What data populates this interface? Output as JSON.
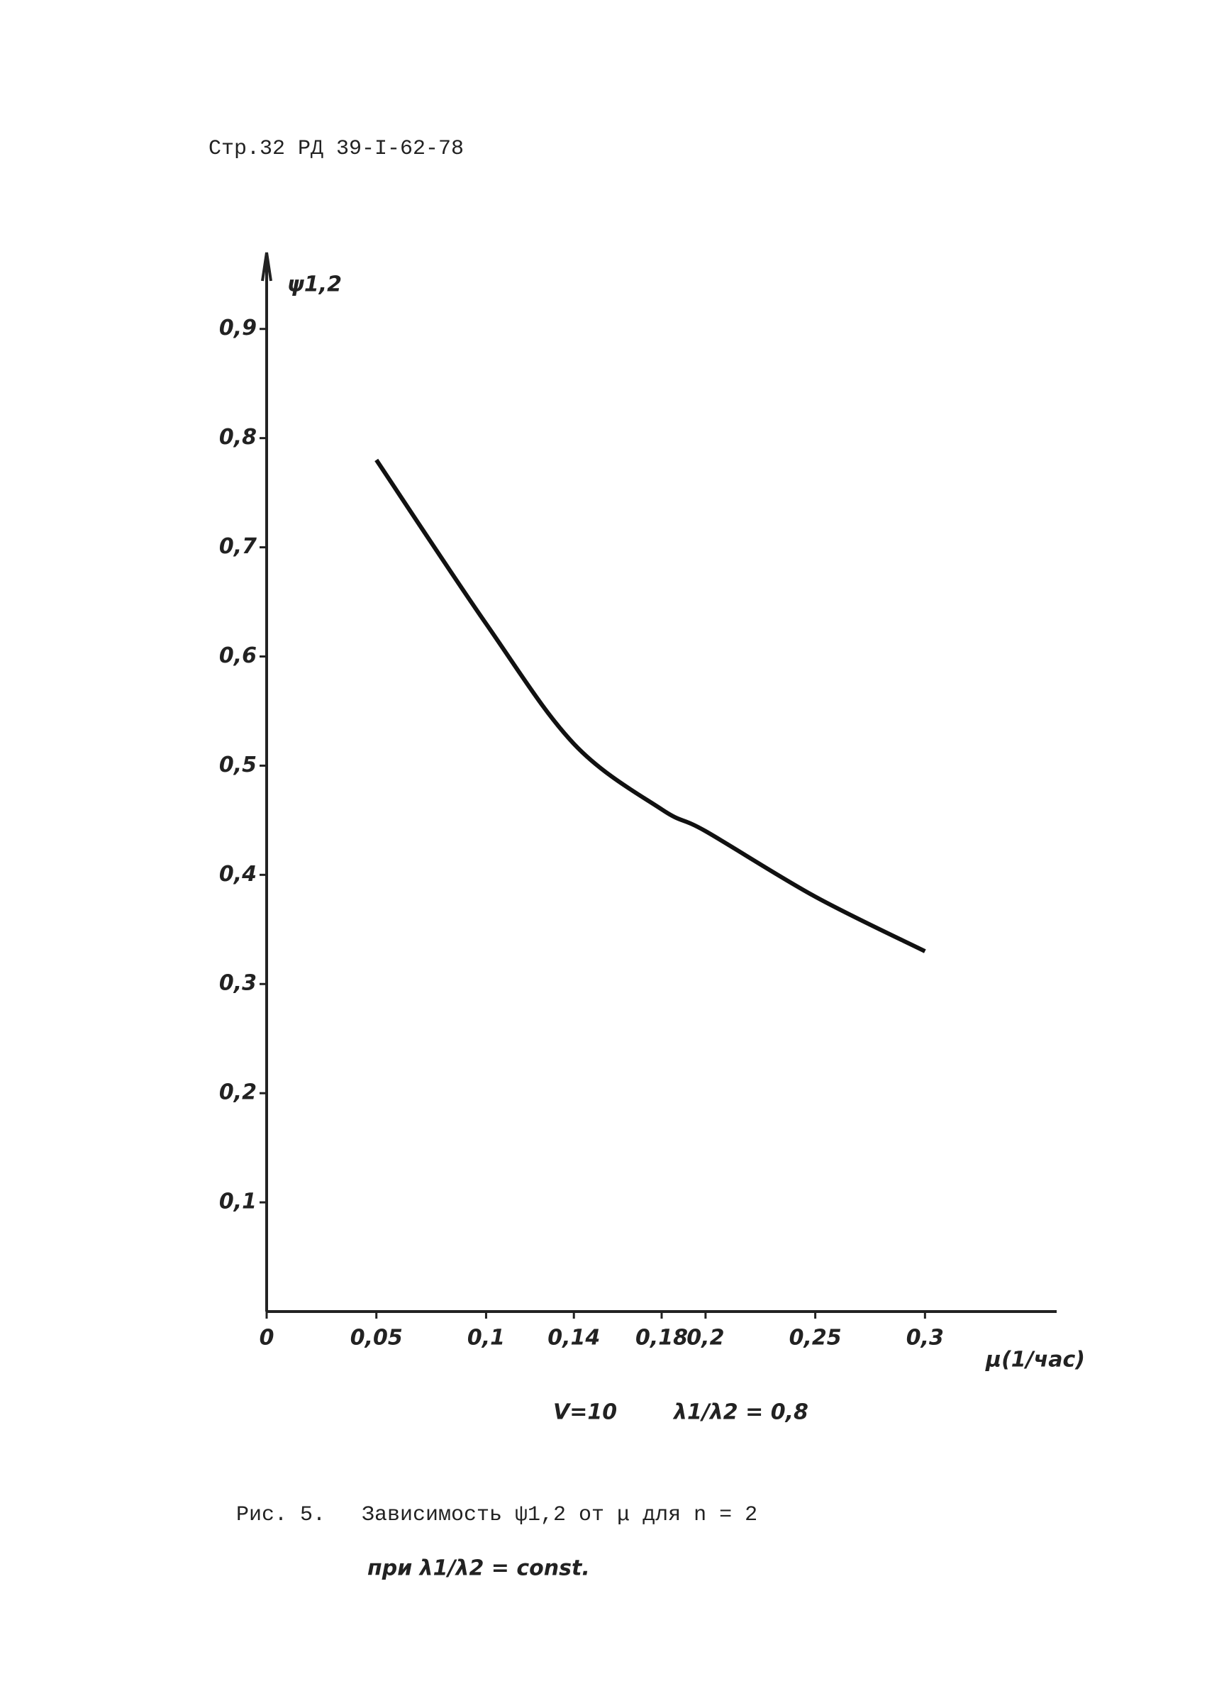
{
  "header": "Стр.32 РД 39-I-62-78",
  "chart_data": {
    "type": "line",
    "y_label": "ψ1,2",
    "x_label": "μ(1/час)",
    "x": [
      0.05,
      0.1,
      0.14,
      0.18,
      0.2,
      0.25,
      0.3
    ],
    "values": [
      0.78,
      0.63,
      0.52,
      0.46,
      0.44,
      0.38,
      0.33
    ],
    "color": "#111111",
    "xlim": [
      0,
      0.36
    ],
    "ylim": [
      0,
      0.97
    ],
    "xticks": [
      0,
      {
        "value": 0.05,
        "label": "0,05"
      },
      {
        "value": 0.1,
        "label": "0,1"
      },
      {
        "value": 0.14,
        "label": "0,14"
      },
      {
        "value": 0.18,
        "label": "0,18"
      },
      {
        "value": 0.2,
        "label": "0,2"
      },
      {
        "value": 0.25,
        "label": "0,25"
      },
      {
        "value": 0.3,
        "label": "0,3"
      }
    ],
    "yticks": [
      {
        "value": 0.1,
        "label": "0,1"
      },
      {
        "value": 0.2,
        "label": "0,2"
      },
      {
        "value": 0.3,
        "label": "0,3"
      },
      {
        "value": 0.4,
        "label": "0,4"
      },
      {
        "value": 0.5,
        "label": "0,5"
      },
      {
        "value": 0.6,
        "label": "0,6"
      },
      {
        "value": 0.7,
        "label": "0,7"
      },
      {
        "value": 0.8,
        "label": "0,8"
      },
      {
        "value": 0.9,
        "label": "0,9"
      }
    ],
    "annotations": [
      "V=10",
      "λ1/λ2 = 0,8"
    ]
  },
  "caption": [
    "Рис. 5.",
    "Зависимость ψ1,2 от μ для n = 2",
    "при λ1/λ2 = const."
  ]
}
